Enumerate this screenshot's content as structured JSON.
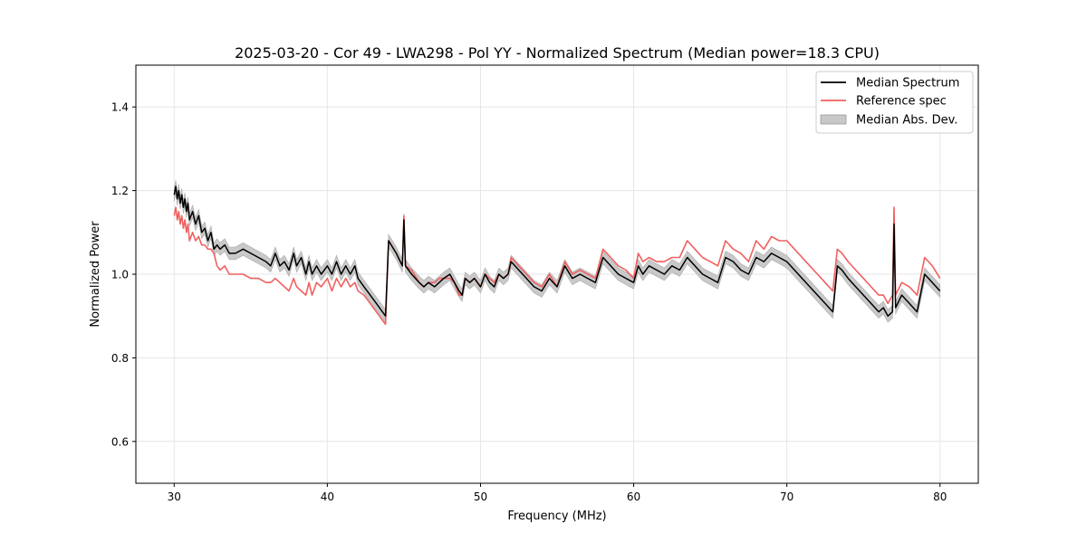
{
  "chart_data": {
    "type": "line",
    "title": "2025-03-20 - Cor 49 - LWA298 - Pol YY - Normalized Spectrum (Median power=18.3 CPU)",
    "xlabel": "Frequency (MHz)",
    "ylabel": "Normalized Power",
    "xlim": [
      27.5,
      82.5
    ],
    "ylim": [
      0.5,
      1.5
    ],
    "xticks": [
      30,
      40,
      50,
      60,
      70,
      80
    ],
    "xtick_labels": [
      "30",
      "40",
      "50",
      "60",
      "70",
      "80"
    ],
    "yticks": [
      0.6,
      0.8,
      1.0,
      1.2,
      1.4
    ],
    "ytick_labels": [
      "0.6",
      "0.8",
      "1.0",
      "1.2",
      "1.4"
    ],
    "grid": true,
    "legend_position": "top-right",
    "legend": [
      {
        "label": "Median Spectrum",
        "kind": "line",
        "color": "#000000"
      },
      {
        "label": "Reference spec",
        "kind": "line",
        "color": "#f06060"
      },
      {
        "label": "Median Abs. Dev.",
        "kind": "band",
        "color": "#b0b0b0"
      }
    ],
    "series": [
      {
        "name": "Median Spectrum",
        "color": "#000000",
        "x": [
          30.0,
          30.1,
          30.2,
          30.3,
          30.4,
          30.5,
          30.6,
          30.7,
          30.8,
          30.9,
          31.0,
          31.2,
          31.4,
          31.6,
          31.8,
          32.0,
          32.2,
          32.4,
          32.6,
          32.8,
          33.0,
          33.3,
          33.6,
          34.0,
          34.5,
          35.0,
          35.5,
          36.0,
          36.3,
          36.6,
          36.9,
          37.2,
          37.5,
          37.8,
          38.0,
          38.3,
          38.6,
          38.8,
          39.0,
          39.3,
          39.6,
          40.0,
          40.3,
          40.6,
          40.9,
          41.2,
          41.5,
          41.8,
          42.0,
          42.4,
          42.8,
          43.2,
          43.6,
          43.8,
          44.0,
          44.5,
          44.9,
          45.0,
          45.1,
          45.5,
          46.0,
          46.3,
          46.6,
          47.0,
          47.3,
          47.6,
          48.0,
          48.3,
          48.6,
          48.8,
          49.0,
          49.3,
          49.6,
          50.0,
          50.3,
          50.6,
          50.9,
          51.2,
          51.5,
          51.8,
          52.0,
          52.5,
          53.0,
          53.5,
          54.0,
          54.5,
          55.0,
          55.5,
          56.0,
          56.5,
          57.0,
          57.5,
          58.0,
          58.5,
          59.0,
          59.5,
          60.0,
          60.3,
          60.6,
          61.0,
          61.5,
          62.0,
          62.5,
          63.0,
          63.5,
          64.0,
          64.5,
          65.0,
          65.5,
          66.0,
          66.5,
          67.0,
          67.5,
          68.0,
          68.5,
          69.0,
          69.5,
          70.0,
          70.5,
          71.0,
          71.5,
          72.0,
          72.5,
          73.0,
          73.3,
          73.6,
          74.0,
          74.5,
          75.0,
          75.5,
          76.0,
          76.3,
          76.6,
          76.9,
          77.0,
          77.1,
          77.5,
          78.0,
          78.5,
          79.0,
          79.5,
          80.0
        ],
        "values": [
          1.19,
          1.21,
          1.18,
          1.2,
          1.17,
          1.19,
          1.16,
          1.18,
          1.15,
          1.17,
          1.13,
          1.15,
          1.12,
          1.14,
          1.1,
          1.11,
          1.08,
          1.1,
          1.06,
          1.07,
          1.06,
          1.07,
          1.05,
          1.05,
          1.06,
          1.05,
          1.04,
          1.03,
          1.02,
          1.05,
          1.02,
          1.03,
          1.01,
          1.05,
          1.02,
          1.04,
          1.0,
          1.03,
          1.0,
          1.02,
          1.0,
          1.02,
          1.0,
          1.03,
          1.0,
          1.02,
          1.0,
          1.02,
          0.99,
          0.97,
          0.95,
          0.93,
          0.91,
          0.9,
          1.08,
          1.05,
          1.02,
          1.13,
          1.02,
          1.0,
          0.98,
          0.97,
          0.98,
          0.97,
          0.98,
          0.99,
          1.0,
          0.98,
          0.96,
          0.95,
          0.99,
          0.98,
          0.99,
          0.97,
          1.0,
          0.98,
          0.97,
          1.0,
          0.99,
          1.0,
          1.03,
          1.01,
          0.99,
          0.97,
          0.96,
          0.99,
          0.97,
          1.02,
          0.99,
          1.0,
          0.99,
          0.98,
          1.04,
          1.02,
          1.0,
          0.99,
          0.98,
          1.02,
          1.0,
          1.02,
          1.01,
          1.0,
          1.02,
          1.01,
          1.04,
          1.02,
          1.0,
          0.99,
          0.98,
          1.04,
          1.03,
          1.01,
          1.0,
          1.04,
          1.03,
          1.05,
          1.04,
          1.03,
          1.01,
          0.99,
          0.97,
          0.95,
          0.93,
          0.91,
          1.02,
          1.01,
          0.99,
          0.97,
          0.95,
          0.93,
          0.91,
          0.92,
          0.9,
          0.91,
          1.12,
          0.92,
          0.95,
          0.93,
          0.91,
          1.0,
          0.98,
          0.96
        ]
      },
      {
        "name": "Reference spec",
        "color": "#f06060",
        "x": [
          30.0,
          30.1,
          30.2,
          30.3,
          30.4,
          30.5,
          30.6,
          30.7,
          30.8,
          30.9,
          31.0,
          31.2,
          31.4,
          31.6,
          31.8,
          32.0,
          32.2,
          32.4,
          32.6,
          32.8,
          33.0,
          33.3,
          33.6,
          34.0,
          34.5,
          35.0,
          35.5,
          36.0,
          36.3,
          36.6,
          36.9,
          37.2,
          37.5,
          37.8,
          38.0,
          38.3,
          38.6,
          38.8,
          39.0,
          39.3,
          39.6,
          40.0,
          40.3,
          40.6,
          40.9,
          41.2,
          41.5,
          41.8,
          42.0,
          42.4,
          42.8,
          43.2,
          43.6,
          43.8,
          44.0,
          44.5,
          44.9,
          45.0,
          45.1,
          45.5,
          46.0,
          46.3,
          46.6,
          47.0,
          47.3,
          47.6,
          48.0,
          48.3,
          48.6,
          48.8,
          49.0,
          49.3,
          49.6,
          50.0,
          50.3,
          50.6,
          50.9,
          51.2,
          51.5,
          51.8,
          52.0,
          52.5,
          53.0,
          53.5,
          54.0,
          54.5,
          55.0,
          55.5,
          56.0,
          56.5,
          57.0,
          57.5,
          58.0,
          58.5,
          59.0,
          59.5,
          60.0,
          60.3,
          60.6,
          61.0,
          61.5,
          62.0,
          62.5,
          63.0,
          63.5,
          64.0,
          64.5,
          65.0,
          65.5,
          66.0,
          66.5,
          67.0,
          67.5,
          68.0,
          68.5,
          69.0,
          69.5,
          70.0,
          70.5,
          71.0,
          71.5,
          72.0,
          72.5,
          73.0,
          73.3,
          73.6,
          74.0,
          74.5,
          75.0,
          75.5,
          76.0,
          76.3,
          76.6,
          76.9,
          77.0,
          77.1,
          77.5,
          78.0,
          78.5,
          79.0,
          79.5,
          80.0
        ],
        "values": [
          1.14,
          1.16,
          1.13,
          1.15,
          1.12,
          1.14,
          1.11,
          1.13,
          1.1,
          1.12,
          1.08,
          1.1,
          1.08,
          1.09,
          1.07,
          1.07,
          1.06,
          1.06,
          1.05,
          1.02,
          1.01,
          1.02,
          1.0,
          1.0,
          1.0,
          0.99,
          0.99,
          0.98,
          0.98,
          0.99,
          0.98,
          0.97,
          0.96,
          0.99,
          0.97,
          0.96,
          0.95,
          0.98,
          0.95,
          0.98,
          0.97,
          0.99,
          0.96,
          0.99,
          0.97,
          0.99,
          0.97,
          0.98,
          0.96,
          0.95,
          0.93,
          0.91,
          0.89,
          0.88,
          1.08,
          1.05,
          1.02,
          1.14,
          1.02,
          1.01,
          0.98,
          0.97,
          0.98,
          0.98,
          0.99,
          0.99,
          0.99,
          0.98,
          0.95,
          0.95,
          0.99,
          0.98,
          0.99,
          0.97,
          1.0,
          0.99,
          0.98,
          1.0,
          0.99,
          1.0,
          1.04,
          1.02,
          1.0,
          0.98,
          0.97,
          1.0,
          0.97,
          1.03,
          1.0,
          1.01,
          1.0,
          0.99,
          1.06,
          1.04,
          1.02,
          1.01,
          0.99,
          1.05,
          1.03,
          1.04,
          1.03,
          1.03,
          1.04,
          1.04,
          1.08,
          1.06,
          1.04,
          1.03,
          1.02,
          1.08,
          1.06,
          1.05,
          1.03,
          1.08,
          1.06,
          1.09,
          1.08,
          1.08,
          1.06,
          1.04,
          1.02,
          1.0,
          0.98,
          0.96,
          1.06,
          1.05,
          1.03,
          1.01,
          0.99,
          0.97,
          0.95,
          0.95,
          0.93,
          0.95,
          1.16,
          0.95,
          0.98,
          0.97,
          0.95,
          1.04,
          1.02,
          0.99
        ]
      }
    ],
    "band": {
      "name": "Median Abs. Dev.",
      "about": "Median Spectrum",
      "half_width": 0.015
    }
  }
}
